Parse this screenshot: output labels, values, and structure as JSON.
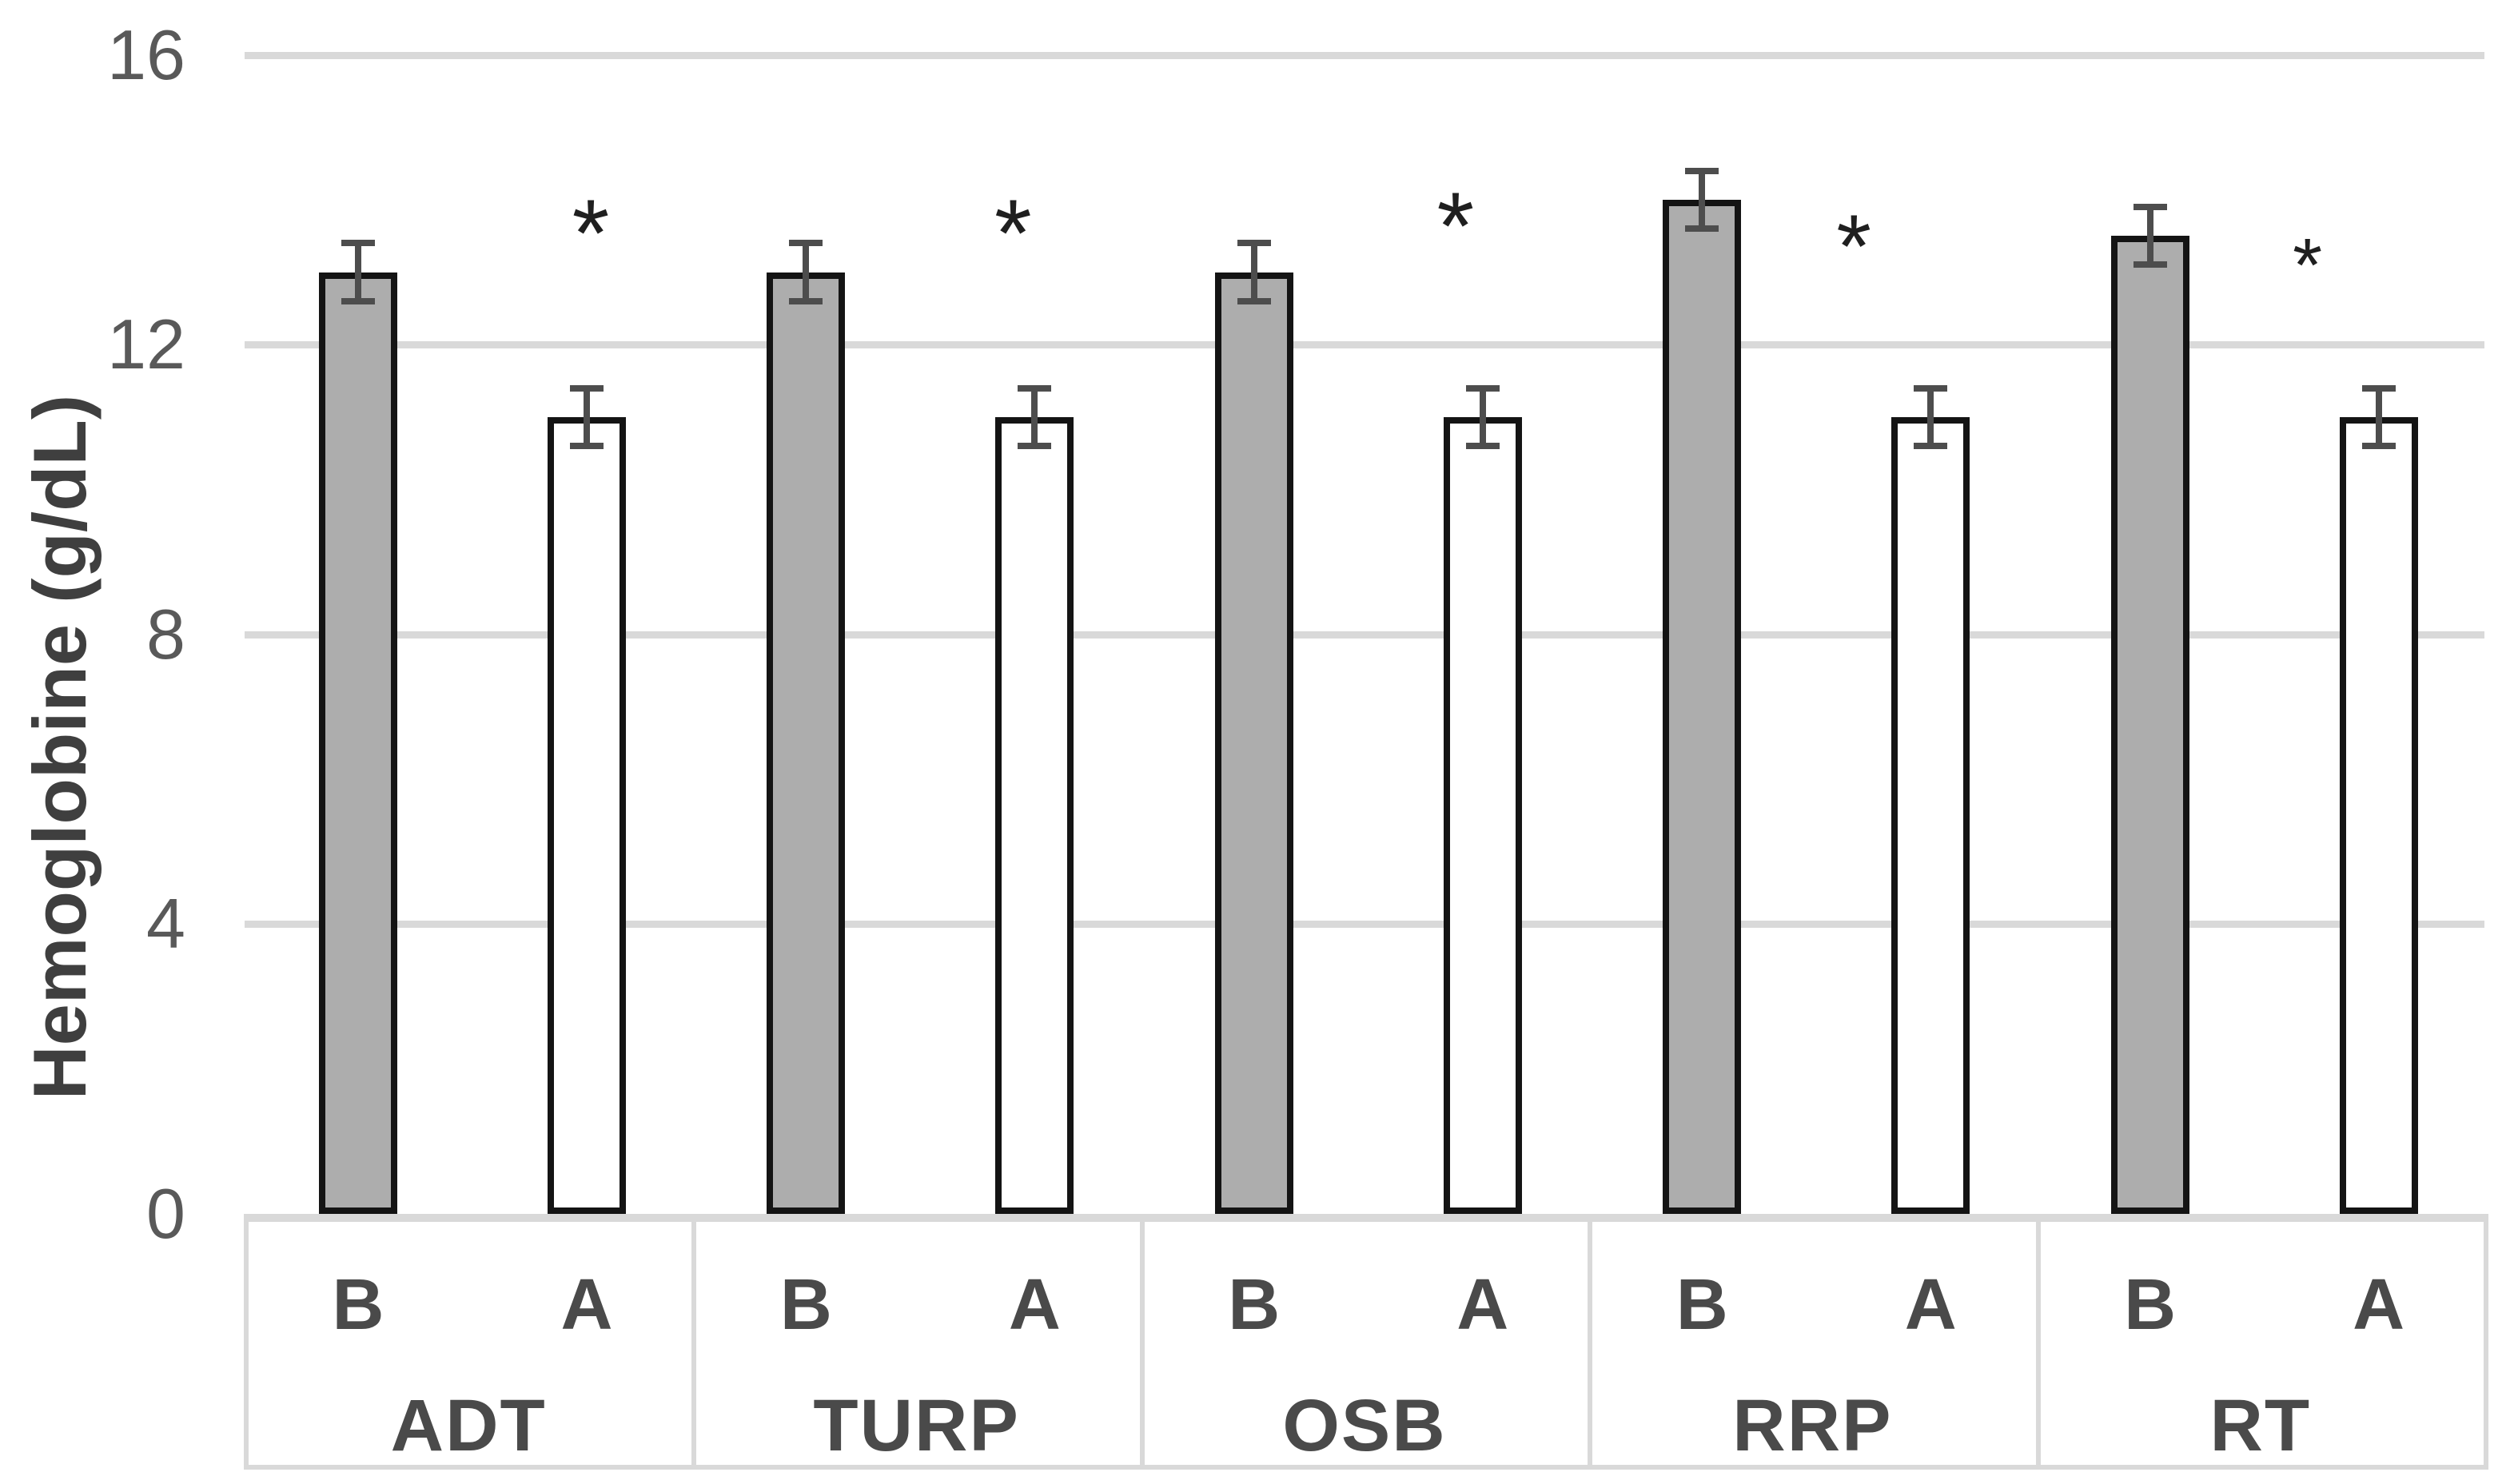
{
  "chart_data": {
    "type": "bar",
    "title": "",
    "xlabel": "",
    "ylabel": "Hemoglobine (g/dL)",
    "ylim": [
      0,
      16
    ],
    "yticks": [
      0,
      4,
      8,
      12,
      16
    ],
    "ytick_labels": [
      "0",
      "4",
      "8",
      "12",
      "16"
    ],
    "grid": true,
    "legend": false,
    "categories": [
      "ADT",
      "TURP",
      "OSB",
      "RRP",
      "RT"
    ],
    "sub_categories": [
      "B",
      "A"
    ],
    "series": [
      {
        "name": "B",
        "values": [
          13.0,
          13.0,
          13.0,
          14.0,
          13.5
        ],
        "errors": [
          0.4,
          0.4,
          0.4,
          0.4,
          0.4
        ],
        "fill": "#adadad"
      },
      {
        "name": "A",
        "values": [
          11.0,
          11.0,
          11.0,
          11.0,
          11.0
        ],
        "errors": [
          0.4,
          0.4,
          0.4,
          0.4,
          0.4
        ],
        "fill": "#ffffff"
      }
    ],
    "significance_markers": [
      {
        "category": "ADT",
        "series": "A",
        "symbol": "*",
        "y": 13.8
      },
      {
        "category": "TURP",
        "series": "A",
        "symbol": "*",
        "y": 13.8
      },
      {
        "category": "OSB",
        "series": "A",
        "symbol": "*",
        "y": 13.9
      },
      {
        "category": "RRP",
        "series": "A",
        "symbol": "*",
        "y": 13.6
      },
      {
        "category": "RT",
        "series": "A",
        "symbol": "*",
        "y": 13.3
      }
    ]
  },
  "colors": {
    "background": "#ffffff",
    "bar_fill_b": "#adadad",
    "bar_fill_a": "#ffffff",
    "bar_border": "#141414",
    "error_bar": "#4d4d4d",
    "gridline": "#d9d9d9",
    "tick_text": "#595959",
    "axis_title_text": "#3f3f3f",
    "category_text": "#4a4a4a",
    "marker_text": "#1f1f1f",
    "label_box_border": "#d9d9d9"
  }
}
